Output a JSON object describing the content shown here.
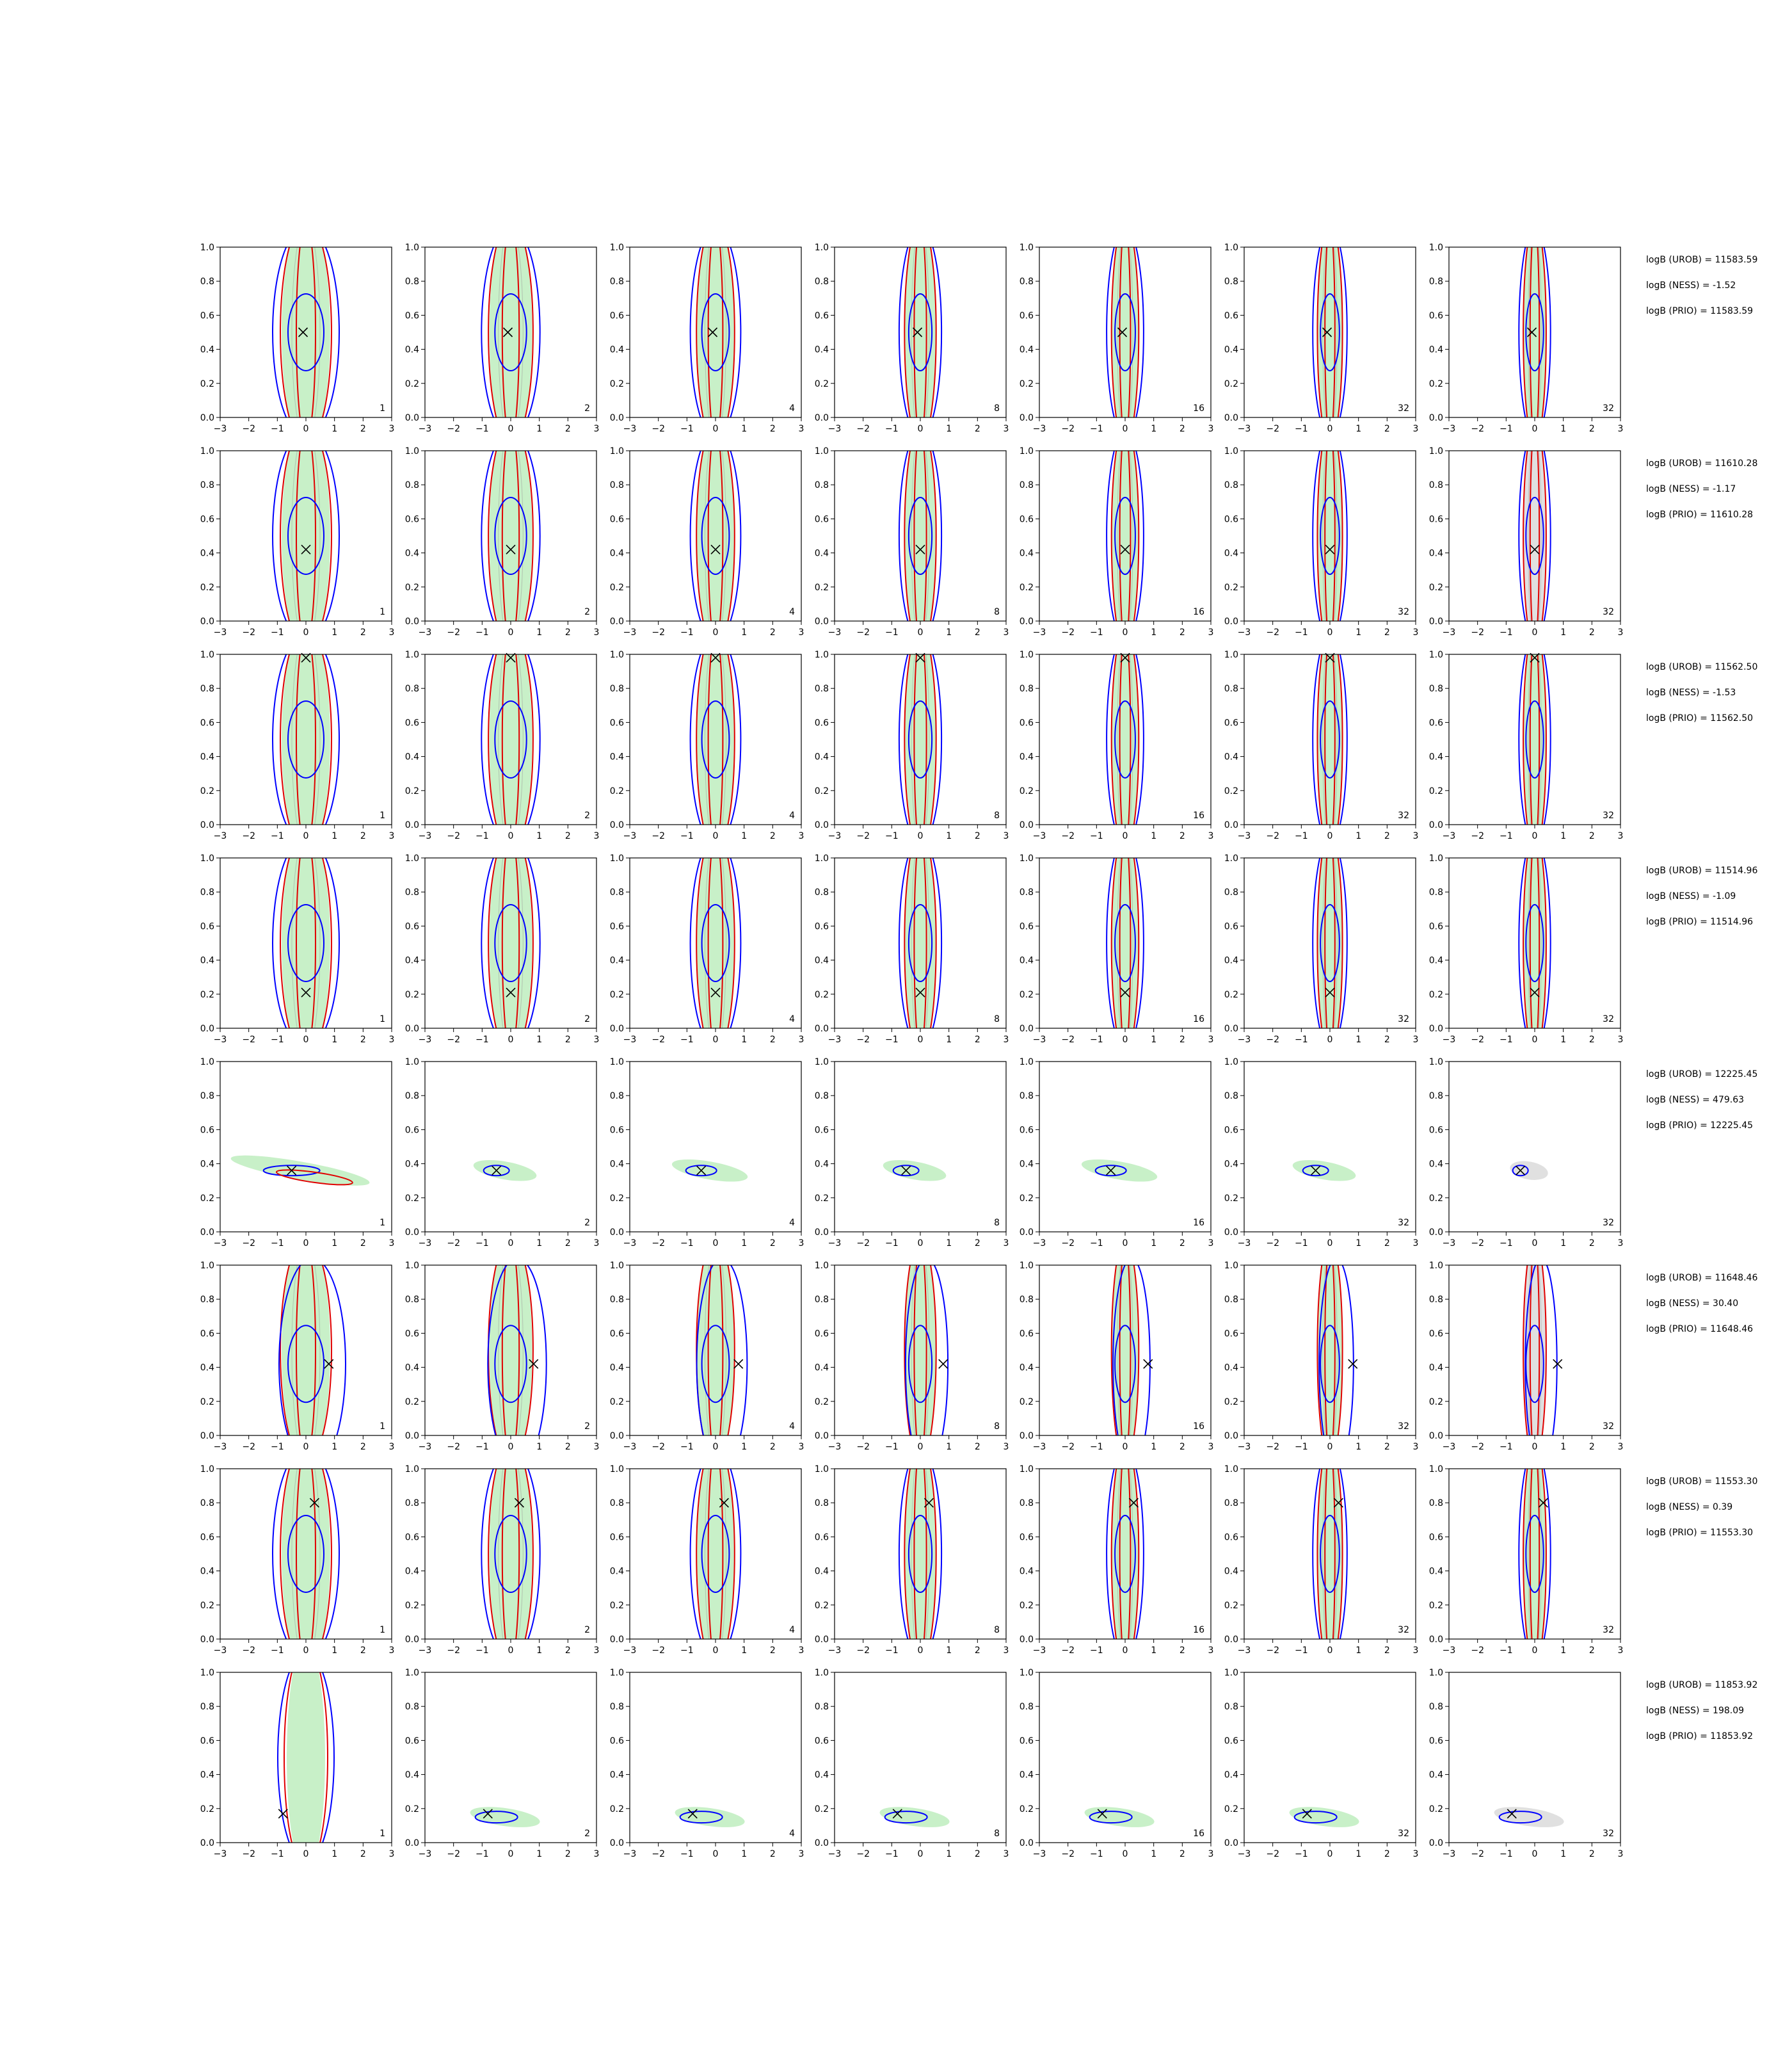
{
  "chart_data": {
    "type": "contour-grid",
    "xlim": [
      -3,
      3
    ],
    "ylim": [
      0,
      1
    ],
    "x_ticks": [
      "−3",
      "−2",
      "−1",
      "0",
      "1",
      "2",
      "3"
    ],
    "y_ticks": [
      "0.0",
      "0.2",
      "0.4",
      "0.6",
      "0.8",
      "1.0"
    ],
    "colors": {
      "filled": "#c8f0c8",
      "filled_gray": "#e0e0e0",
      "line_a": "#0000ff",
      "line_b": "#e00000",
      "marker": "#000000"
    },
    "column_labels": [
      "1",
      "2",
      "4",
      "8",
      "16",
      "32",
      "32"
    ],
    "rows": [
      {
        "true_point": {
          "x": -0.1,
          "y": 0.5
        },
        "shape": "vertical",
        "logB": [
          "logB (UROB) = 11583.59",
          "logB (NESS) = -1.52",
          "logB (PRIO) = 11583.59"
        ]
      },
      {
        "true_point": {
          "x": 0.0,
          "y": 0.42
        },
        "shape": "vertical",
        "logB": [
          "logB (UROB) = 11610.28",
          "logB (NESS) = -1.17",
          "logB (PRIO) = 11610.28"
        ]
      },
      {
        "true_point": {
          "x": 0.0,
          "y": 0.98
        },
        "shape": "vertical",
        "logB": [
          "logB (UROB) = 11562.50",
          "logB (NESS) = -1.53",
          "logB (PRIO) = 11562.50"
        ]
      },
      {
        "true_point": {
          "x": 0.0,
          "y": 0.21
        },
        "shape": "vertical",
        "logB": [
          "logB (UROB) = 11514.96",
          "logB (NESS) = -1.09",
          "logB (PRIO) = 11514.96"
        ]
      },
      {
        "true_point": {
          "x": -0.5,
          "y": 0.36
        },
        "shape": "blob",
        "logB": [
          "logB (UROB) = 12225.45",
          "logB (NESS) = 479.63",
          "logB (PRIO) = 12225.45"
        ]
      },
      {
        "true_point": {
          "x": 0.8,
          "y": 0.42
        },
        "shape": "offset",
        "logB": [
          "logB (UROB) = 11648.46",
          "logB (NESS) = 30.40",
          "logB (PRIO) = 11648.46"
        ]
      },
      {
        "true_point": {
          "x": 0.3,
          "y": 0.8
        },
        "shape": "vertical",
        "logB": [
          "logB (UROB) = 11553.30",
          "logB (NESS) = 0.39",
          "logB (PRIO) = 11553.30"
        ]
      },
      {
        "true_point": {
          "x": -0.8,
          "y": 0.17
        },
        "shape": "blob-low",
        "logB": [
          "logB (UROB) = 11853.92",
          "logB (NESS) = 198.09",
          "logB (PRIO) = 11853.92"
        ]
      }
    ]
  }
}
